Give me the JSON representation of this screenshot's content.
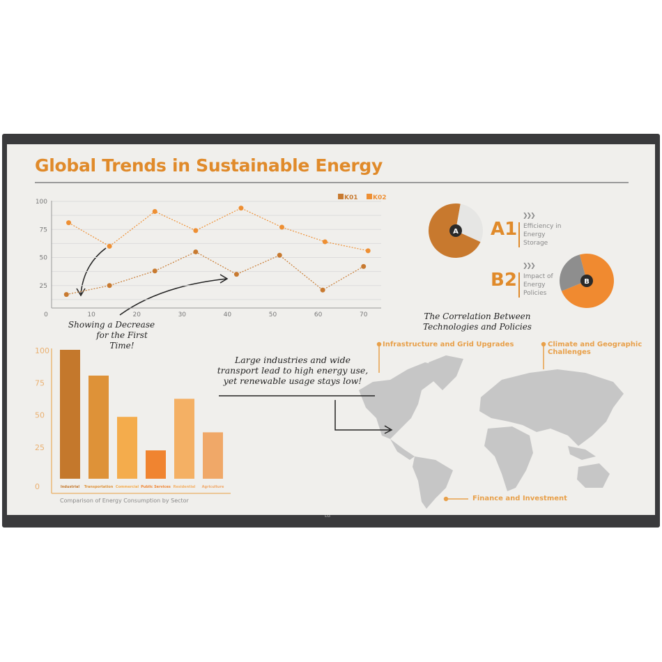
{
  "title": "Global Trends in Sustainable Energy",
  "brand": "LG",
  "colors": {
    "accent": "#e08a2a",
    "k01": "#c87a30",
    "k02": "#ee8f33",
    "grid": "#d8d8d8",
    "map": "#c4c4c4"
  },
  "annotations": {
    "line_note_1": "Showing a Decrease",
    "line_note_2": "for the First Time!",
    "map_note_1": "Large industries and wide",
    "map_note_2": "transport lead to high energy use,",
    "map_note_3": "yet renewable usage stays low!",
    "map_title_1": "The Correlation Between",
    "map_title_2": "Technologies and Policies"
  },
  "map_labels": {
    "infrastructure": "Infrastructure and Grid Upgrades",
    "climate_1": "Climate and Geographic",
    "climate_2": "Challenges",
    "finance": "Finance and Investment"
  },
  "chart_data": [
    {
      "type": "line",
      "legend": [
        "K01",
        "K02"
      ],
      "legend_placement": "top-right",
      "grid": true,
      "xlim": [
        0,
        73
      ],
      "ylim": [
        0,
        100
      ],
      "x_ticks": [
        "0",
        "10",
        "20",
        "30",
        "40",
        "50",
        "60",
        "70"
      ],
      "y_ticks": [
        "100",
        "75",
        "50",
        "25"
      ],
      "series": [
        {
          "name": "K01",
          "x": [
            4.5,
            14,
            24,
            33,
            42,
            51.5,
            61,
            70
          ],
          "values": [
            17,
            25,
            38,
            55,
            35,
            52,
            21,
            42
          ]
        },
        {
          "name": "K02",
          "x": [
            5,
            14,
            24,
            33,
            43,
            52,
            61.5,
            71
          ],
          "values": [
            81,
            60,
            91,
            74,
            94,
            77,
            64,
            56
          ]
        }
      ]
    },
    {
      "type": "bar",
      "title": "Comparison of Energy Consumption by Sector",
      "categories": [
        "Industrial",
        "Transportation",
        "Commercial",
        "Public Services",
        "Residential",
        "Agriculture"
      ],
      "values": [
        100,
        80,
        48,
        22,
        62,
        36
      ],
      "bar_colors": [
        "#c4782c",
        "#de9238",
        "#f4ac4c",
        "#f08430",
        "#f4b064",
        "#f0a868"
      ],
      "ylim": [
        0,
        100
      ],
      "y_ticks": [
        "100",
        "75",
        "50",
        "25",
        "0"
      ]
    },
    {
      "type": "pie",
      "label": "A",
      "tag": "A1",
      "caption": [
        "Efficiency in",
        "Energy",
        "Storage"
      ],
      "slices": [
        {
          "value": 71,
          "color": "#c8792e"
        },
        {
          "value": 29,
          "color": "#e6e6e4"
        }
      ]
    },
    {
      "type": "pie",
      "label": "B",
      "tag": "B2",
      "caption": [
        "Impact of",
        "Energy",
        "Policies"
      ],
      "slices": [
        {
          "value": 73,
          "color": "#f08a30"
        },
        {
          "value": 27,
          "color": "#8e8e8e"
        }
      ]
    }
  ]
}
